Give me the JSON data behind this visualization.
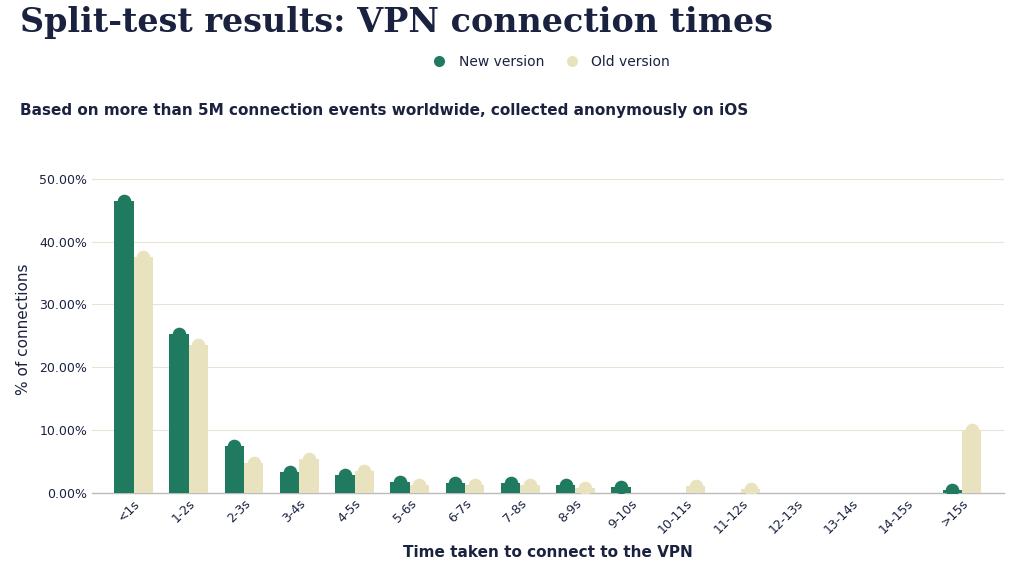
{
  "title": "Split-test results: VPN connection times",
  "subtitle": "Based on more than 5M connection events worldwide, collected anonymously on iOS",
  "xlabel": "Time taken to connect to the VPN",
  "ylabel": "% of connections",
  "categories": [
    "<1s",
    "1-2s",
    "2-3s",
    "3-4s",
    "4-5s",
    "5-6s",
    "6-7s",
    "7-8s",
    "8-9s",
    "9-10s",
    "10-11s",
    "11-12s",
    "12-13s",
    "13-14s",
    "14-15s",
    ">15s"
  ],
  "new_version": [
    46.5,
    25.3,
    7.5,
    3.3,
    2.8,
    1.7,
    1.5,
    1.6,
    1.3,
    0.9,
    0.0,
    0.0,
    0.0,
    0.0,
    0.0,
    0.5
  ],
  "old_version": [
    37.5,
    23.5,
    4.8,
    5.3,
    3.5,
    1.3,
    1.3,
    1.3,
    0.7,
    0.0,
    1.0,
    0.6,
    0.0,
    0.0,
    0.0,
    10.0
  ],
  "new_color": "#1f7a60",
  "old_color": "#e8e3be",
  "background_color": "#ffffff",
  "grid_color": "#e8e3d8",
  "text_color": "#1a2240",
  "legend_new": "New version",
  "legend_old": "Old version",
  "ylim": [
    0,
    52
  ],
  "yticks": [
    0,
    10,
    20,
    30,
    40,
    50
  ],
  "bar_width": 0.35,
  "title_fontsize": 24,
  "subtitle_fontsize": 11,
  "axis_label_fontsize": 11,
  "tick_fontsize": 9
}
